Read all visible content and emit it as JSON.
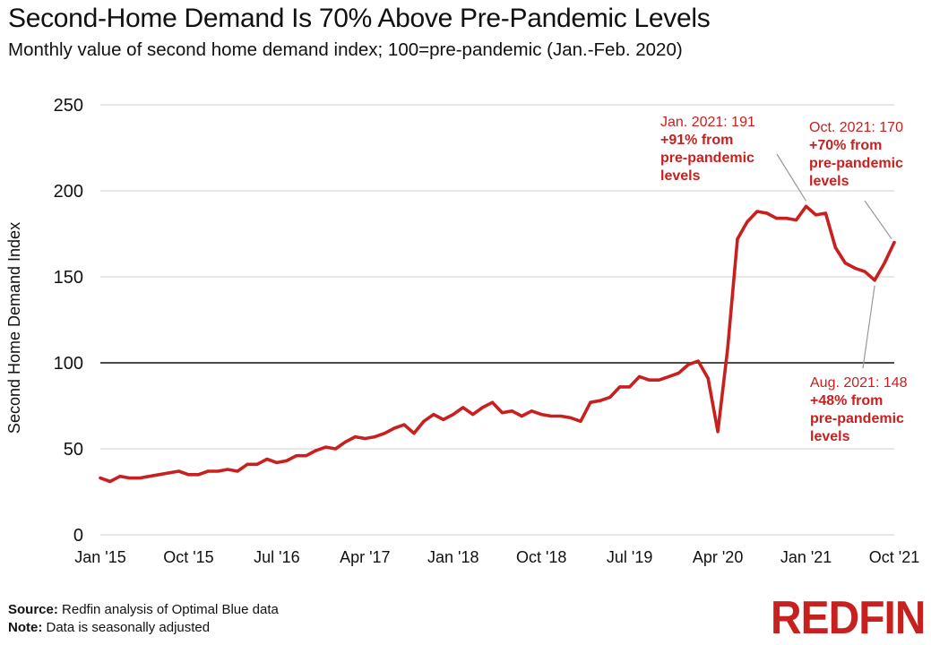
{
  "title": "Second-Home Demand Is 70% Above Pre-Pandemic Levels",
  "subtitle": "Monthly value of second home demand index; 100=pre-pandemic (Jan.-Feb. 2020)",
  "footer": {
    "source_label": "Source:",
    "source_text": "Redfin analysis of Optimal Blue data",
    "note_label": "Note:",
    "note_text": "Data is seasonally adjusted"
  },
  "logo_text": "REDFIN",
  "colors": {
    "line": "#c8201e",
    "annotation": "#c8201e",
    "reference_line": "#333333",
    "grid": "#cfcfcf"
  },
  "chart_data": {
    "type": "line",
    "ylabel": "Second Home Demand Index",
    "ylim": [
      0,
      250
    ],
    "yticks": [
      0,
      50,
      100,
      150,
      200,
      250
    ],
    "xtick_labels": [
      "Jan '15",
      "Oct '15",
      "Jul '16",
      "Apr '17",
      "Jan '18",
      "Oct '18",
      "Jul '19",
      "Apr '20",
      "Jan '21",
      "Oct '21"
    ],
    "xtick_index": [
      0,
      9,
      18,
      27,
      36,
      45,
      54,
      63,
      72,
      81
    ],
    "grid": true,
    "reference_line": 100,
    "x": [
      "2015-01",
      "2015-02",
      "2015-03",
      "2015-04",
      "2015-05",
      "2015-06",
      "2015-07",
      "2015-08",
      "2015-09",
      "2015-10",
      "2015-11",
      "2015-12",
      "2016-01",
      "2016-02",
      "2016-03",
      "2016-04",
      "2016-05",
      "2016-06",
      "2016-07",
      "2016-08",
      "2016-09",
      "2016-10",
      "2016-11",
      "2016-12",
      "2017-01",
      "2017-02",
      "2017-03",
      "2017-04",
      "2017-05",
      "2017-06",
      "2017-07",
      "2017-08",
      "2017-09",
      "2017-10",
      "2017-11",
      "2017-12",
      "2018-01",
      "2018-02",
      "2018-03",
      "2018-04",
      "2018-05",
      "2018-06",
      "2018-07",
      "2018-08",
      "2018-09",
      "2018-10",
      "2018-11",
      "2018-12",
      "2019-01",
      "2019-02",
      "2019-03",
      "2019-04",
      "2019-05",
      "2019-06",
      "2019-07",
      "2019-08",
      "2019-09",
      "2019-10",
      "2019-11",
      "2019-12",
      "2020-01",
      "2020-02",
      "2020-03",
      "2020-04",
      "2020-05",
      "2020-06",
      "2020-07",
      "2020-08",
      "2020-09",
      "2020-10",
      "2020-11",
      "2020-12",
      "2021-01",
      "2021-02",
      "2021-03",
      "2021-04",
      "2021-05",
      "2021-06",
      "2021-07",
      "2021-08",
      "2021-09",
      "2021-10"
    ],
    "values": [
      33,
      31,
      34,
      33,
      33,
      34,
      35,
      36,
      37,
      35,
      35,
      37,
      37,
      38,
      37,
      41,
      41,
      44,
      42,
      43,
      46,
      46,
      49,
      51,
      50,
      54,
      57,
      56,
      57,
      59,
      62,
      64,
      59,
      66,
      70,
      67,
      70,
      74,
      70,
      74,
      77,
      71,
      72,
      69,
      72,
      70,
      69,
      69,
      68,
      66,
      77,
      78,
      80,
      86,
      86,
      92,
      90,
      90,
      92,
      94,
      99,
      101,
      91,
      60,
      108,
      172,
      182,
      188,
      187,
      184,
      184,
      183,
      191,
      186,
      187,
      167,
      158,
      155,
      153,
      148,
      158,
      170
    ],
    "annotations": [
      {
        "label": "Jan. 2021: 191",
        "bold_lines": [
          "+91% from",
          "pre-pandemic",
          "levels"
        ]
      },
      {
        "label": "Oct. 2021: 170",
        "bold_lines": [
          "+70% from",
          "pre-pandemic",
          "levels"
        ]
      },
      {
        "label": "Aug. 2021: 148",
        "bold_lines": [
          "+48% from",
          "pre-pandemic",
          "levels"
        ]
      }
    ]
  }
}
